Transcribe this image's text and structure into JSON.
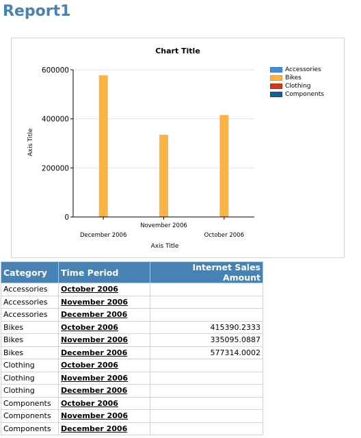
{
  "report": {
    "title": "Report1"
  },
  "chart_data": {
    "type": "bar",
    "title": "Chart Title",
    "xlabel": "Axis Title",
    "ylabel": "Axis Title",
    "ylim": [
      0,
      600000
    ],
    "yticks": [
      0,
      200000,
      400000,
      600000
    ],
    "categories": [
      "December 2006",
      "November 2006",
      "October 2006"
    ],
    "series": [
      {
        "name": "Accessories",
        "color": "#3c8ee8",
        "values": [
          0,
          0,
          0
        ]
      },
      {
        "name": "Bikes",
        "color": "#fbb344",
        "values": [
          577314.0002,
          335095.0887,
          415390.2333
        ]
      },
      {
        "name": "Clothing",
        "color": "#d6361c",
        "values": [
          0,
          0,
          0
        ]
      },
      {
        "name": "Components",
        "color": "#1d5f8c",
        "values": [
          0,
          0,
          0
        ]
      }
    ],
    "grid": true,
    "legend": "right"
  },
  "table": {
    "headers": {
      "category": "Category",
      "period": "Time Period",
      "amount": "Internet Sales Amount"
    },
    "rows": [
      {
        "category": "Accessories",
        "period": "October 2006",
        "amount": ""
      },
      {
        "category": "Accessories",
        "period": "November 2006",
        "amount": ""
      },
      {
        "category": "Accessories",
        "period": "December 2006",
        "amount": ""
      },
      {
        "category": "Bikes",
        "period": "October 2006",
        "amount": "415390.2333"
      },
      {
        "category": "Bikes",
        "period": "November 2006",
        "amount": "335095.0887"
      },
      {
        "category": "Bikes",
        "period": "December 2006",
        "amount": "577314.0002"
      },
      {
        "category": "Clothing",
        "period": "October 2006",
        "amount": ""
      },
      {
        "category": "Clothing",
        "period": "November 2006",
        "amount": ""
      },
      {
        "category": "Clothing",
        "period": "December 2006",
        "amount": ""
      },
      {
        "category": "Components",
        "period": "October 2006",
        "amount": ""
      },
      {
        "category": "Components",
        "period": "November 2006",
        "amount": ""
      },
      {
        "category": "Components",
        "period": "December 2006",
        "amount": ""
      }
    ]
  }
}
